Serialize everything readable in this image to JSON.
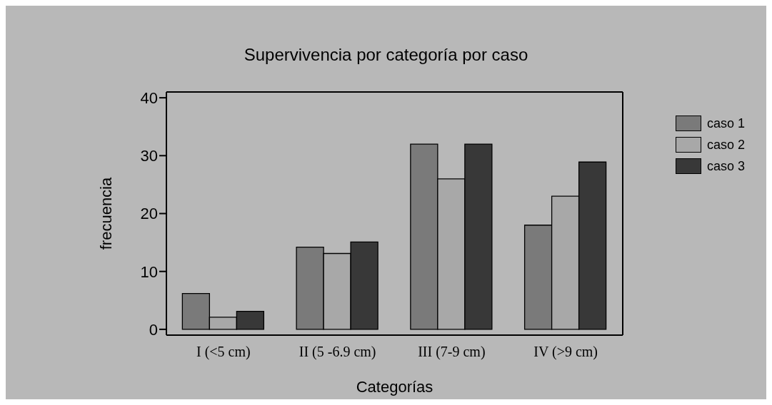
{
  "chart_data": {
    "type": "bar",
    "title": "Supervivencia por categoría por caso",
    "xlabel": "Categorías",
    "ylabel": "frecuencia",
    "categories": [
      "I (<5 cm)",
      "II (5 -6.9 cm)",
      "III (7-9 cm)",
      "IV (>9 cm)"
    ],
    "series": [
      {
        "name": "caso 1",
        "color": "#7a7a7a",
        "values": [
          6.2,
          14.2,
          32,
          18
        ]
      },
      {
        "name": "caso 2",
        "color": "#a8a8a8",
        "values": [
          2.1,
          13.1,
          26,
          23
        ]
      },
      {
        "name": "caso 3",
        "color": "#383838",
        "values": [
          3.1,
          15.1,
          32,
          28.9
        ]
      }
    ],
    "ylim": [
      -1,
      41
    ],
    "yticks": [
      0,
      10,
      20,
      30,
      40
    ],
    "grid": false,
    "legend": "top right"
  }
}
